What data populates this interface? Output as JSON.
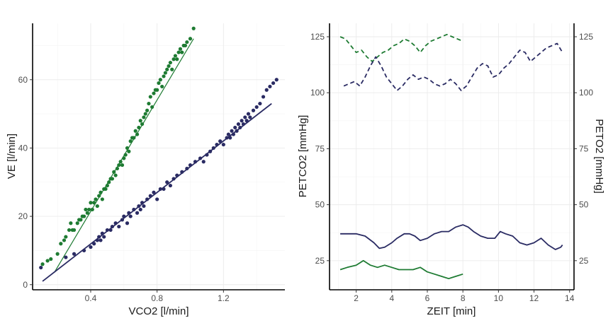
{
  "colors": {
    "green": "#1e7b32",
    "navy": "#2a2b63"
  },
  "chart_data": [
    {
      "type": "scatter",
      "xlabel": "VCO2 [l/min]",
      "ylabel": "VE [l/min]",
      "xlim": [
        0.05,
        1.57
      ],
      "ylim": [
        -1.5,
        76.5
      ],
      "x_ticks": [
        0.4,
        0.8,
        1.2
      ],
      "y_ticks": [
        0,
        20,
        40,
        60
      ],
      "grid": true,
      "fits": [
        {
          "color_key": "green",
          "x": [
            0.18,
            1.02
          ],
          "y": [
            3.5,
            72
          ]
        },
        {
          "color_key": "navy",
          "x": [
            0.11,
            1.49
          ],
          "y": [
            1,
            53
          ]
        }
      ],
      "series": [
        {
          "color_key": "green",
          "points": [
            [
              0.11,
              6
            ],
            [
              0.14,
              7
            ],
            [
              0.16,
              7.5
            ],
            [
              0.2,
              9
            ],
            [
              0.22,
              12
            ],
            [
              0.24,
              13
            ],
            [
              0.25,
              14
            ],
            [
              0.27,
              16
            ],
            [
              0.28,
              18
            ],
            [
              0.29,
              16
            ],
            [
              0.3,
              16
            ],
            [
              0.32,
              18
            ],
            [
              0.33,
              19
            ],
            [
              0.34,
              19
            ],
            [
              0.35,
              20
            ],
            [
              0.36,
              20
            ],
            [
              0.37,
              22
            ],
            [
              0.38,
              21
            ],
            [
              0.39,
              22
            ],
            [
              0.4,
              24
            ],
            [
              0.41,
              22
            ],
            [
              0.42,
              24
            ],
            [
              0.43,
              25
            ],
            [
              0.44,
              23
            ],
            [
              0.45,
              26
            ],
            [
              0.46,
              27
            ],
            [
              0.47,
              25
            ],
            [
              0.48,
              28
            ],
            [
              0.49,
              28
            ],
            [
              0.5,
              29
            ],
            [
              0.51,
              30
            ],
            [
              0.52,
              31
            ],
            [
              0.53,
              31
            ],
            [
              0.54,
              33
            ],
            [
              0.55,
              32
            ],
            [
              0.56,
              34
            ],
            [
              0.57,
              35
            ],
            [
              0.58,
              36
            ],
            [
              0.59,
              35
            ],
            [
              0.6,
              37
            ],
            [
              0.61,
              38
            ],
            [
              0.62,
              40
            ],
            [
              0.63,
              39
            ],
            [
              0.64,
              42
            ],
            [
              0.65,
              43
            ],
            [
              0.66,
              43
            ],
            [
              0.67,
              45
            ],
            [
              0.68,
              44
            ],
            [
              0.69,
              46
            ],
            [
              0.7,
              48
            ],
            [
              0.71,
              47
            ],
            [
              0.72,
              49
            ],
            [
              0.73,
              50
            ],
            [
              0.74,
              51
            ],
            [
              0.75,
              53
            ],
            [
              0.76,
              55
            ],
            [
              0.77,
              52
            ],
            [
              0.78,
              56
            ],
            [
              0.79,
              57
            ],
            [
              0.8,
              57
            ],
            [
              0.81,
              59
            ],
            [
              0.82,
              60
            ],
            [
              0.83,
              58
            ],
            [
              0.84,
              61
            ],
            [
              0.85,
              62
            ],
            [
              0.86,
              63
            ],
            [
              0.87,
              64
            ],
            [
              0.88,
              65
            ],
            [
              0.89,
              63
            ],
            [
              0.9,
              66
            ],
            [
              0.91,
              67
            ],
            [
              0.92,
              66
            ],
            [
              0.93,
              68
            ],
            [
              0.94,
              69
            ],
            [
              0.95,
              68
            ],
            [
              0.96,
              70
            ],
            [
              0.97,
              70
            ],
            [
              0.98,
              71
            ],
            [
              1.0,
              72
            ],
            [
              1.02,
              75
            ]
          ]
        },
        {
          "color_key": "navy",
          "points": [
            [
              0.1,
              5
            ],
            [
              0.25,
              8
            ],
            [
              0.3,
              9
            ],
            [
              0.36,
              10
            ],
            [
              0.4,
              11
            ],
            [
              0.42,
              12
            ],
            [
              0.44,
              13
            ],
            [
              0.45,
              14
            ],
            [
              0.46,
              13
            ],
            [
              0.47,
              15
            ],
            [
              0.48,
              14
            ],
            [
              0.5,
              16
            ],
            [
              0.52,
              16
            ],
            [
              0.53,
              17
            ],
            [
              0.55,
              18
            ],
            [
              0.57,
              17
            ],
            [
              0.59,
              19
            ],
            [
              0.6,
              20
            ],
            [
              0.62,
              18
            ],
            [
              0.63,
              21
            ],
            [
              0.64,
              20
            ],
            [
              0.66,
              22
            ],
            [
              0.68,
              21
            ],
            [
              0.69,
              23
            ],
            [
              0.7,
              22
            ],
            [
              0.71,
              24
            ],
            [
              0.72,
              23
            ],
            [
              0.74,
              25
            ],
            [
              0.76,
              26
            ],
            [
              0.78,
              27
            ],
            [
              0.8,
              25
            ],
            [
              0.82,
              28
            ],
            [
              0.84,
              28
            ],
            [
              0.86,
              30
            ],
            [
              0.88,
              29
            ],
            [
              0.9,
              31
            ],
            [
              0.92,
              32
            ],
            [
              0.95,
              33
            ],
            [
              0.98,
              34
            ],
            [
              1.0,
              35
            ],
            [
              1.03,
              36
            ],
            [
              1.06,
              37
            ],
            [
              1.08,
              36
            ],
            [
              1.1,
              38
            ],
            [
              1.12,
              39
            ],
            [
              1.14,
              40
            ],
            [
              1.16,
              41
            ],
            [
              1.18,
              42
            ],
            [
              1.2,
              41
            ],
            [
              1.22,
              43
            ],
            [
              1.23,
              44
            ],
            [
              1.24,
              43
            ],
            [
              1.25,
              45
            ],
            [
              1.26,
              44
            ],
            [
              1.27,
              46
            ],
            [
              1.28,
              45
            ],
            [
              1.29,
              47
            ],
            [
              1.3,
              46
            ],
            [
              1.31,
              48
            ],
            [
              1.32,
              47
            ],
            [
              1.33,
              49
            ],
            [
              1.34,
              48
            ],
            [
              1.35,
              50
            ],
            [
              1.36,
              49
            ],
            [
              1.38,
              51
            ],
            [
              1.4,
              52
            ],
            [
              1.42,
              53
            ],
            [
              1.44,
              55
            ],
            [
              1.46,
              57
            ],
            [
              1.48,
              58
            ],
            [
              1.5,
              59
            ],
            [
              1.52,
              60
            ]
          ]
        }
      ]
    },
    {
      "type": "line",
      "xlabel": "ZEIT [min]",
      "ylabel_left": "PETCO2 [mmHg]",
      "ylabel_right": "PETO2 [mmHg]",
      "xlim": [
        0.5,
        14.25
      ],
      "ylim": [
        12,
        131
      ],
      "x_ticks": [
        2,
        4,
        6,
        8,
        10,
        12,
        14
      ],
      "y_ticks": [
        25,
        50,
        75,
        100,
        125
      ],
      "grid": true,
      "series": [
        {
          "color_key": "green",
          "dash": true,
          "points": [
            [
              1.1,
              125
            ],
            [
              1.4,
              124
            ],
            [
              1.7,
              121
            ],
            [
              2.0,
              118
            ],
            [
              2.3,
              119
            ],
            [
              2.6,
              116
            ],
            [
              2.9,
              114
            ],
            [
              3.2,
              116
            ],
            [
              3.5,
              118
            ],
            [
              3.8,
              119
            ],
            [
              4.1,
              121
            ],
            [
              4.4,
              122
            ],
            [
              4.7,
              124
            ],
            [
              5.0,
              123
            ],
            [
              5.3,
              121
            ],
            [
              5.6,
              118
            ],
            [
              5.9,
              121
            ],
            [
              6.2,
              123
            ],
            [
              6.5,
              124
            ],
            [
              6.8,
              125
            ],
            [
              7.1,
              126
            ],
            [
              7.4,
              125
            ],
            [
              7.7,
              124
            ],
            [
              8.0,
              123
            ]
          ]
        },
        {
          "color_key": "navy",
          "dash": true,
          "points": [
            [
              1.3,
              103
            ],
            [
              1.6,
              104
            ],
            [
              1.9,
              105
            ],
            [
              2.2,
              103
            ],
            [
              2.5,
              107
            ],
            [
              2.8,
              112
            ],
            [
              3.1,
              116
            ],
            [
              3.4,
              112
            ],
            [
              3.7,
              107
            ],
            [
              4.0,
              104
            ],
            [
              4.3,
              101
            ],
            [
              4.6,
              103
            ],
            [
              4.9,
              106
            ],
            [
              5.2,
              108
            ],
            [
              5.5,
              106
            ],
            [
              5.8,
              107
            ],
            [
              6.1,
              106
            ],
            [
              6.4,
              104
            ],
            [
              6.7,
              103
            ],
            [
              7.0,
              104
            ],
            [
              7.3,
              106
            ],
            [
              7.6,
              104
            ],
            [
              7.9,
              101
            ],
            [
              8.2,
              103
            ],
            [
              8.5,
              107
            ],
            [
              8.8,
              111
            ],
            [
              9.1,
              113
            ],
            [
              9.4,
              112
            ],
            [
              9.7,
              107
            ],
            [
              10.0,
              108
            ],
            [
              10.3,
              111
            ],
            [
              10.6,
              113
            ],
            [
              10.9,
              116
            ],
            [
              11.2,
              119
            ],
            [
              11.5,
              118
            ],
            [
              11.8,
              114
            ],
            [
              12.1,
              116
            ],
            [
              12.4,
              118
            ],
            [
              12.7,
              120
            ],
            [
              13.0,
              121
            ],
            [
              13.3,
              122
            ],
            [
              13.6,
              118
            ]
          ]
        },
        {
          "color_key": "navy",
          "dash": false,
          "points": [
            [
              1.1,
              37
            ],
            [
              1.5,
              37
            ],
            [
              2.0,
              37
            ],
            [
              2.5,
              36
            ],
            [
              3.0,
              33
            ],
            [
              3.3,
              30.5
            ],
            [
              3.6,
              31
            ],
            [
              4.0,
              33
            ],
            [
              4.3,
              35
            ],
            [
              4.7,
              37
            ],
            [
              5.0,
              37
            ],
            [
              5.3,
              36
            ],
            [
              5.6,
              34
            ],
            [
              6.0,
              35
            ],
            [
              6.4,
              37
            ],
            [
              6.8,
              38
            ],
            [
              7.2,
              38
            ],
            [
              7.6,
              40
            ],
            [
              8.0,
              41
            ],
            [
              8.3,
              40
            ],
            [
              8.6,
              38
            ],
            [
              9.0,
              36
            ],
            [
              9.4,
              35
            ],
            [
              9.8,
              35
            ],
            [
              10.1,
              38
            ],
            [
              10.4,
              37
            ],
            [
              10.8,
              36
            ],
            [
              11.2,
              33
            ],
            [
              11.6,
              32
            ],
            [
              12.0,
              33
            ],
            [
              12.4,
              35
            ],
            [
              12.8,
              32
            ],
            [
              13.2,
              30
            ],
            [
              13.5,
              31
            ],
            [
              13.6,
              32
            ]
          ]
        },
        {
          "color_key": "green",
          "dash": false,
          "points": [
            [
              1.1,
              21
            ],
            [
              1.5,
              22
            ],
            [
              2.0,
              23
            ],
            [
              2.4,
              25
            ],
            [
              2.8,
              23
            ],
            [
              3.2,
              22
            ],
            [
              3.6,
              23
            ],
            [
              4.0,
              22
            ],
            [
              4.4,
              21
            ],
            [
              4.8,
              21
            ],
            [
              5.2,
              21
            ],
            [
              5.6,
              22
            ],
            [
              6.0,
              20
            ],
            [
              6.4,
              19
            ],
            [
              6.8,
              18
            ],
            [
              7.2,
              17
            ],
            [
              7.6,
              18
            ],
            [
              8.0,
              19
            ]
          ]
        }
      ]
    }
  ]
}
